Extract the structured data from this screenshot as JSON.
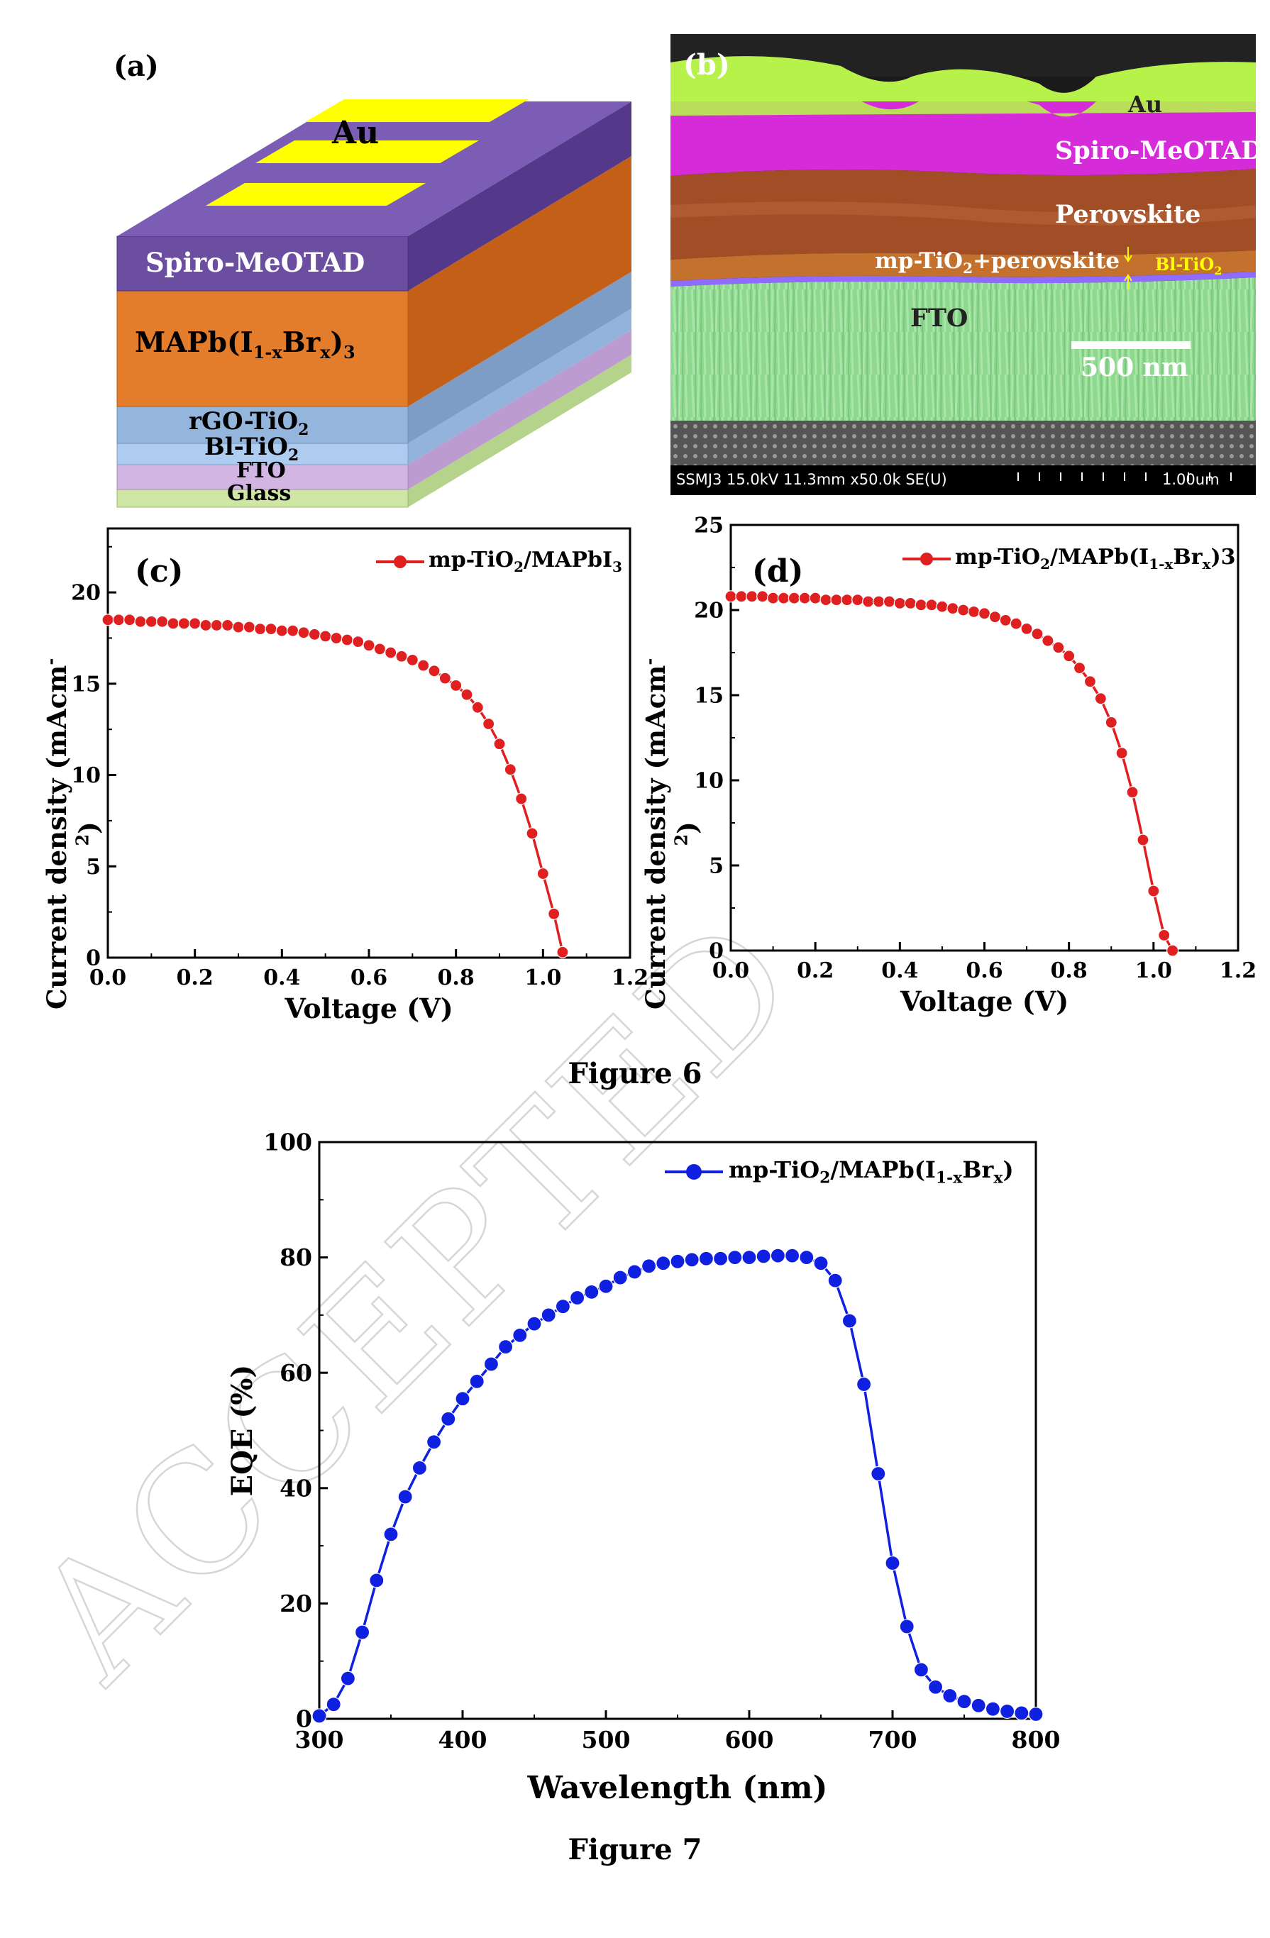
{
  "figure6": {
    "caption": "Figure 6",
    "panel_a": {
      "label": "(a)",
      "layers": [
        {
          "name": "Au",
          "color": "#ffff00"
        },
        {
          "name": "Spiro-MeOTAD",
          "color": "#6b4ea0"
        },
        {
          "name": "MAPb(I1-xBrx)3",
          "color": "#e37d2c"
        },
        {
          "name": "rGO-TiO2",
          "color": "#95b6dc"
        },
        {
          "name": "Bl-TiO2",
          "color": "#aecbf0"
        },
        {
          "name": "FTO",
          "color": "#d3b5e4"
        },
        {
          "name": "Glass",
          "color": "#cfe5a4"
        }
      ]
    },
    "panel_b": {
      "label": "(b)",
      "labels": {
        "au": "Au",
        "spiro": "Spiro-MeOTAD",
        "perovskite": "Perovskite",
        "mp": "mp-TiO2+perovskite",
        "bl": "Bl-TiO2",
        "fto": "FTO",
        "scalebar": "500 nm",
        "footer_left": "SSMJ3 15.0kV 11.3mm x50.0k SE(U)",
        "footer_right": "1.00um"
      }
    }
  },
  "figure7_caption": "Figure 7",
  "watermark": "ACCEPTED",
  "chart_data": [
    {
      "panel": "(c)",
      "type": "line",
      "xlabel": "Voltage (V)",
      "ylabel": "Current density (mAcm-2)",
      "xlim": [
        0,
        1.2
      ],
      "ylim": [
        0,
        23.5
      ],
      "xticks": [
        "0.0",
        "0.2",
        "0.4",
        "0.6",
        "0.8",
        "1.0",
        "1.2"
      ],
      "yticks": [
        "0",
        "5",
        "10",
        "15",
        "20"
      ],
      "legend": "top-right",
      "series": [
        {
          "name": "mp-TiO2/MAPbI3",
          "color": "#e02020",
          "x": [
            0.0,
            0.025,
            0.05,
            0.075,
            0.1,
            0.125,
            0.15,
            0.175,
            0.2,
            0.225,
            0.25,
            0.275,
            0.3,
            0.325,
            0.35,
            0.375,
            0.4,
            0.425,
            0.45,
            0.475,
            0.5,
            0.525,
            0.55,
            0.575,
            0.6,
            0.625,
            0.65,
            0.675,
            0.7,
            0.725,
            0.75,
            0.775,
            0.8,
            0.825,
            0.85,
            0.875,
            0.9,
            0.925,
            0.95,
            0.975,
            1.0,
            1.025,
            1.045
          ],
          "y": [
            18.5,
            18.5,
            18.5,
            18.4,
            18.4,
            18.4,
            18.3,
            18.3,
            18.3,
            18.2,
            18.2,
            18.2,
            18.1,
            18.1,
            18.0,
            18.0,
            17.9,
            17.9,
            17.8,
            17.7,
            17.6,
            17.5,
            17.4,
            17.3,
            17.1,
            16.9,
            16.7,
            16.5,
            16.3,
            16.0,
            15.7,
            15.3,
            14.9,
            14.4,
            13.7,
            12.8,
            11.7,
            10.3,
            8.7,
            6.8,
            4.6,
            2.4,
            0.3
          ]
        }
      ]
    },
    {
      "panel": "(d)",
      "type": "line",
      "xlabel": "Voltage (V)",
      "ylabel": "Current density (mAcm-2)",
      "xlim": [
        0,
        1.2
      ],
      "ylim": [
        0,
        25
      ],
      "xticks": [
        "0.0",
        "0.2",
        "0.4",
        "0.6",
        "0.8",
        "1.0",
        "1.2"
      ],
      "yticks": [
        "0",
        "5",
        "10",
        "15",
        "20",
        "25"
      ],
      "legend": "top-right",
      "series": [
        {
          "name": "mp-TiO2/MAPb(I1-xBrx)3",
          "color": "#e02020",
          "x": [
            0.0,
            0.025,
            0.05,
            0.075,
            0.1,
            0.125,
            0.15,
            0.175,
            0.2,
            0.225,
            0.25,
            0.275,
            0.3,
            0.325,
            0.35,
            0.375,
            0.4,
            0.425,
            0.45,
            0.475,
            0.5,
            0.525,
            0.55,
            0.575,
            0.6,
            0.625,
            0.65,
            0.675,
            0.7,
            0.725,
            0.75,
            0.775,
            0.8,
            0.825,
            0.85,
            0.875,
            0.9,
            0.925,
            0.95,
            0.975,
            1.0,
            1.025,
            1.045
          ],
          "y": [
            20.8,
            20.8,
            20.8,
            20.8,
            20.7,
            20.7,
            20.7,
            20.7,
            20.7,
            20.6,
            20.6,
            20.6,
            20.6,
            20.5,
            20.5,
            20.5,
            20.4,
            20.4,
            20.3,
            20.3,
            20.2,
            20.1,
            20.0,
            19.9,
            19.8,
            19.6,
            19.4,
            19.2,
            18.9,
            18.6,
            18.2,
            17.8,
            17.3,
            16.6,
            15.8,
            14.8,
            13.4,
            11.6,
            9.3,
            6.5,
            3.5,
            0.9,
            0.0
          ]
        }
      ]
    },
    {
      "panel": "Figure 7",
      "type": "line",
      "xlabel": "Wavelength (nm)",
      "ylabel": "EQE (%)",
      "xlim": [
        300,
        800
      ],
      "ylim": [
        0,
        100
      ],
      "xticks": [
        "300",
        "400",
        "500",
        "600",
        "700",
        "800"
      ],
      "yticks": [
        "0",
        "20",
        "40",
        "60",
        "80",
        "100"
      ],
      "legend": "top-right",
      "series": [
        {
          "name": "mp-TiO2/MAPb(I1-xBrx)",
          "color": "#1020e0",
          "x": [
            300,
            310,
            320,
            330,
            340,
            350,
            360,
            370,
            380,
            390,
            400,
            410,
            420,
            430,
            440,
            450,
            460,
            470,
            480,
            490,
            500,
            510,
            520,
            530,
            540,
            550,
            560,
            570,
            580,
            590,
            600,
            610,
            620,
            630,
            640,
            650,
            660,
            670,
            680,
            690,
            700,
            710,
            720,
            730,
            740,
            750,
            760,
            770,
            780,
            790,
            800
          ],
          "y": [
            0.5,
            2.5,
            7,
            15,
            24,
            32,
            38.5,
            43.5,
            48,
            52,
            55.5,
            58.5,
            61.5,
            64.5,
            66.5,
            68.5,
            70,
            71.5,
            73,
            74,
            75,
            76.5,
            77.5,
            78.5,
            79,
            79.3,
            79.6,
            79.8,
            79.8,
            80,
            80,
            80.2,
            80.3,
            80.3,
            80,
            79,
            76,
            69,
            58,
            42.5,
            27,
            16,
            8.5,
            5.5,
            4,
            3,
            2.3,
            1.7,
            1.3,
            1,
            0.8
          ]
        }
      ]
    }
  ]
}
